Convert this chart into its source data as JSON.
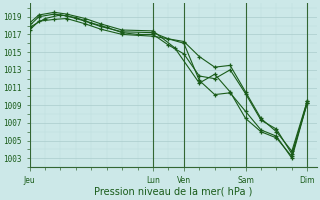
{
  "background_color": "#cce8e8",
  "grid_major_color": "#aacccc",
  "grid_minor_color": "#bbdddd",
  "line_color": "#1a5c1a",
  "ylabel": "Pression niveau de la mer( hPa )",
  "ylim": [
    1002.0,
    1020.5
  ],
  "yticks": [
    1003,
    1005,
    1007,
    1009,
    1011,
    1013,
    1015,
    1017,
    1019
  ],
  "xtick_labels": [
    "Jeu",
    "Lun",
    "Ven",
    "Sam",
    "Dim"
  ],
  "xtick_positions": [
    0,
    4,
    5,
    7,
    9
  ],
  "xlim": [
    0,
    9.3
  ],
  "vline_positions": [
    0,
    4,
    5,
    7,
    9
  ],
  "series": [
    {
      "x": [
        0.0,
        0.3,
        0.8,
        1.2,
        1.8,
        2.3,
        3.0,
        4.0,
        4.7,
        5.5,
        6.0,
        6.5,
        7.0,
        7.5,
        8.0,
        8.5,
        9.0
      ],
      "y": [
        1018.3,
        1019.2,
        1019.5,
        1019.3,
        1018.8,
        1018.2,
        1017.5,
        1017.4,
        1015.5,
        1011.5,
        1012.5,
        1010.5,
        1007.5,
        1006.0,
        1005.3,
        1003.2,
        1009.5
      ]
    },
    {
      "x": [
        0.0,
        0.3,
        0.8,
        1.2,
        1.8,
        2.3,
        3.0,
        4.0,
        4.5,
        5.0,
        5.5,
        6.0,
        6.5,
        7.0,
        7.5,
        8.0,
        8.5,
        9.0
      ],
      "y": [
        1018.0,
        1019.0,
        1019.3,
        1019.1,
        1018.5,
        1017.9,
        1017.3,
        1017.2,
        1016.5,
        1016.0,
        1011.8,
        1010.2,
        1010.4,
        1008.3,
        1006.2,
        1005.5,
        1003.0,
        1009.3
      ]
    },
    {
      "x": [
        0.0,
        0.5,
        1.0,
        1.5,
        2.0,
        2.5,
        3.0,
        3.5,
        4.0,
        4.5,
        5.0,
        5.5,
        6.0,
        6.5,
        7.0,
        7.5,
        8.0,
        8.5,
        9.0
      ],
      "y": [
        1017.8,
        1018.8,
        1019.2,
        1018.9,
        1018.3,
        1017.8,
        1017.2,
        1017.0,
        1017.0,
        1015.8,
        1014.8,
        1012.3,
        1012.0,
        1013.0,
        1010.3,
        1007.3,
        1006.3,
        1003.5,
        1009.2
      ]
    },
    {
      "x": [
        0.0,
        0.3,
        0.8,
        1.2,
        1.8,
        2.3,
        3.0,
        4.0,
        5.0,
        5.5,
        6.0,
        6.5,
        7.0,
        7.5,
        8.0,
        8.5,
        9.0
      ],
      "y": [
        1017.5,
        1018.5,
        1018.7,
        1018.8,
        1018.2,
        1017.6,
        1017.0,
        1016.8,
        1016.2,
        1014.5,
        1013.3,
        1013.5,
        1010.5,
        1007.5,
        1006.0,
        1003.8,
        1009.5
      ]
    }
  ],
  "figsize": [
    3.2,
    2.0
  ],
  "dpi": 100,
  "tick_fontsize": 5.5,
  "xlabel_fontsize": 7
}
